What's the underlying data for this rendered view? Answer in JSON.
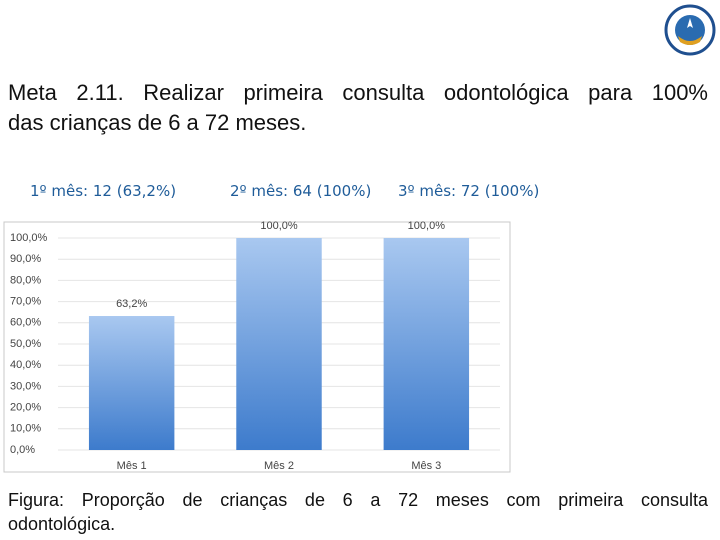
{
  "heading": [
    "Meta 2.11. Realizar primeira consulta odontológica para 100%",
    "das crianças de 6 a 72 meses."
  ],
  "stats": [
    "1º mês:   12 (63,2%)",
    "2º mês: 64 (100%)",
    "3º mês: 72 (100%)"
  ],
  "chart_data": {
    "type": "bar",
    "categories": [
      "Mês 1",
      "Mês 2",
      "Mês 3"
    ],
    "values": [
      63.2,
      100,
      100
    ],
    "value_labels": [
      "63,2%",
      "100,0%",
      "100,0%"
    ],
    "color": "#3d7bcc",
    "ylim": [
      0,
      100
    ],
    "yticks": [
      {
        "value": 0,
        "label": "0,0%"
      },
      {
        "value": 10,
        "label": "10,0%"
      },
      {
        "value": 20,
        "label": "20,0%"
      },
      {
        "value": 30,
        "label": "30,0%"
      },
      {
        "value": 40,
        "label": "40,0%"
      },
      {
        "value": 50,
        "label": "50,0%"
      },
      {
        "value": 60,
        "label": "60,0%"
      },
      {
        "value": 70,
        "label": "70,0%"
      },
      {
        "value": 80,
        "label": "80,0%"
      },
      {
        "value": 90,
        "label": "90,0%"
      },
      {
        "value": 100,
        "label": "100,0%"
      }
    ],
    "grid": true
  },
  "caption": [
    "Figura: Proporção de crianças de 6 a 72 meses com primeira consulta",
    "odontológica."
  ]
}
